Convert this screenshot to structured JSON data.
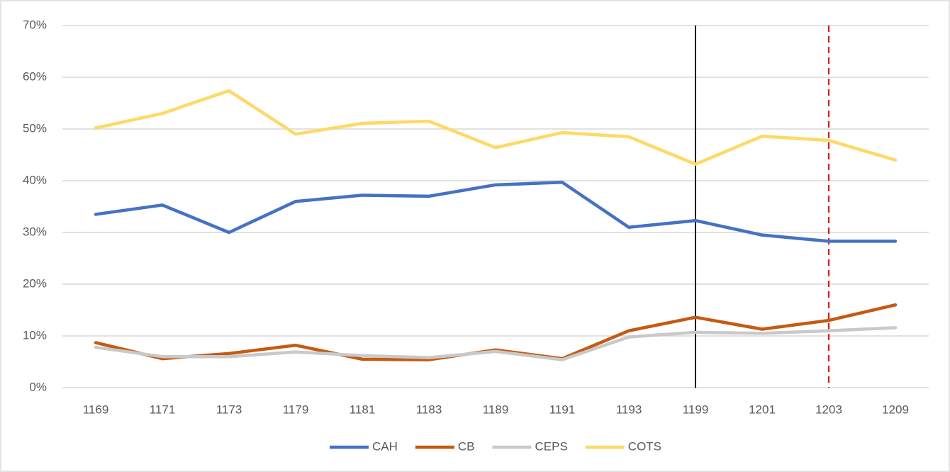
{
  "chart_data": {
    "type": "line",
    "categories": [
      "1169",
      "1171",
      "1173",
      "1179",
      "1181",
      "1183",
      "1189",
      "1191",
      "1193",
      "1199",
      "1201",
      "1203",
      "1209"
    ],
    "series": [
      {
        "name": "CAH",
        "color": "#4472c4",
        "values": [
          33.5,
          35.3,
          30.0,
          36.0,
          37.2,
          37.0,
          39.2,
          39.7,
          31.0,
          32.3,
          29.5,
          28.3,
          28.3
        ]
      },
      {
        "name": "CB",
        "color": "#c55a11",
        "values": [
          8.7,
          5.6,
          6.6,
          8.2,
          5.5,
          5.4,
          7.3,
          5.6,
          11.0,
          13.6,
          11.3,
          13.0,
          16.0
        ]
      },
      {
        "name": "CEPS",
        "color": "#c9c9c9",
        "values": [
          7.8,
          6.0,
          6.0,
          6.9,
          6.2,
          5.8,
          7.0,
          5.4,
          9.8,
          10.7,
          10.5,
          11.0,
          11.6
        ]
      },
      {
        "name": "COTS",
        "color": "#ffd966",
        "values": [
          50.2,
          53.0,
          57.4,
          49.0,
          51.1,
          51.5,
          46.4,
          49.3,
          48.5,
          43.2,
          48.6,
          47.8,
          44.0
        ]
      }
    ],
    "ylim": [
      0,
      70
    ],
    "yticks": [
      {
        "value": 0,
        "label": "0%"
      },
      {
        "value": 10,
        "label": "10%"
      },
      {
        "value": 20,
        "label": "20%"
      },
      {
        "value": 30,
        "label": "30%"
      },
      {
        "value": 40,
        "label": "40%"
      },
      {
        "value": 50,
        "label": "50%"
      },
      {
        "value": 60,
        "label": "60%"
      },
      {
        "value": 70,
        "label": "70%"
      }
    ],
    "grid": true,
    "legend": "bottom",
    "markers": [
      {
        "at": "1199",
        "color": "#000000",
        "style": "solid"
      },
      {
        "at": "1203",
        "color": "#ff0000",
        "style": "dashed"
      }
    ]
  }
}
